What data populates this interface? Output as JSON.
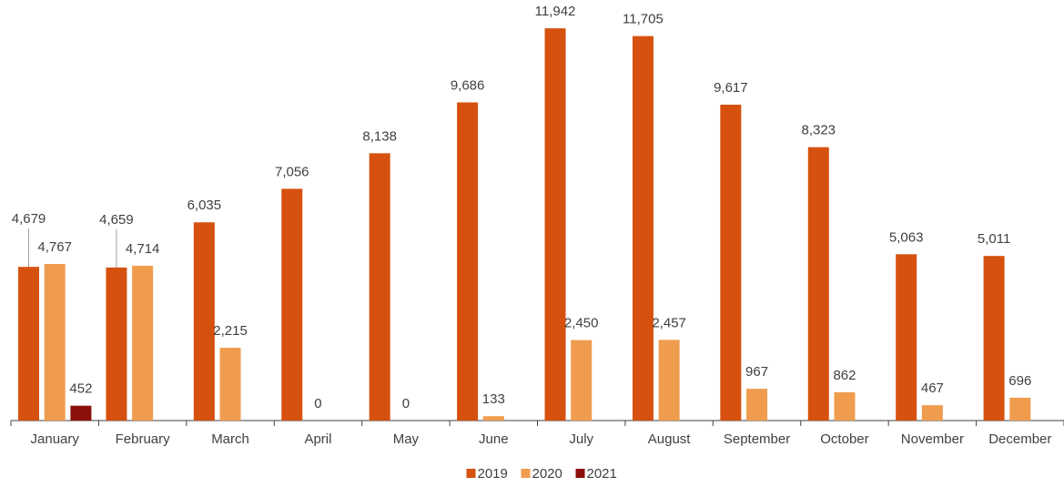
{
  "chart_data": {
    "type": "bar",
    "categories": [
      "January",
      "February",
      "March",
      "April",
      "May",
      "June",
      "July",
      "August",
      "September",
      "October",
      "November",
      "December"
    ],
    "series": [
      {
        "name": "2019",
        "color": "#d6510f",
        "values": [
          4679,
          4659,
          6035,
          7056,
          8138,
          9686,
          11942,
          11705,
          9617,
          8323,
          5063,
          5011
        ],
        "value_labels": [
          "4,679",
          "4,659",
          "6,035",
          "7,056",
          "8,138",
          "9,686",
          "11,942",
          "11,705",
          "9,617",
          "8,323",
          "5,063",
          "5,011"
        ]
      },
      {
        "name": "2020",
        "color": "#f09c4e",
        "values": [
          4767,
          4714,
          2215,
          0,
          0,
          133,
          2450,
          2457,
          967,
          862,
          467,
          696
        ],
        "value_labels": [
          "4,767",
          "4,714",
          "2,215",
          "0",
          "0",
          "133",
          "2,450",
          "2,457",
          "967",
          "862",
          "467",
          "696"
        ]
      },
      {
        "name": "2021",
        "color": "#8b0f0a",
        "values": [
          452,
          null,
          null,
          null,
          null,
          null,
          null,
          null,
          null,
          null,
          null,
          null
        ],
        "value_labels": [
          "452",
          null,
          null,
          null,
          null,
          null,
          null,
          null,
          null,
          null,
          null,
          null
        ]
      }
    ],
    "ylim": [
      0,
      12000
    ],
    "legend": "bottom"
  }
}
